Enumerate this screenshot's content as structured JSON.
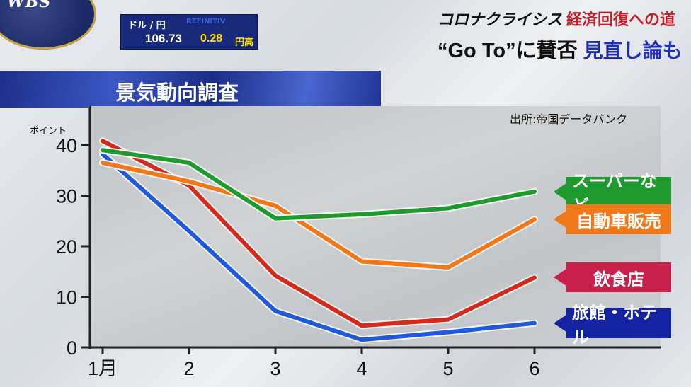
{
  "logo": {
    "text": "WBS"
  },
  "fx": {
    "label": "ドル / 円",
    "ticker": "REFINITIV",
    "rate": "106.73",
    "change": "0.28",
    "direction": "円高"
  },
  "series_title": {
    "part1": "コロナクライシス",
    "part2": "経済回復への道"
  },
  "headline": {
    "part1": "“Go To”に賛否",
    "part2": "見直し論も"
  },
  "chart_data": {
    "type": "line",
    "title": "景気動向調査",
    "source": "出所:帝国データバンク",
    "ylabel": "ポイント",
    "xlabel": "",
    "x": [
      "1月",
      "2",
      "3",
      "4",
      "5",
      "6"
    ],
    "ylim": [
      0,
      45
    ],
    "yticks": [
      0,
      10,
      20,
      30,
      40
    ],
    "grid": false,
    "legend": "right",
    "series": [
      {
        "name": "スーパーなど",
        "color": "#1e9a2e",
        "values": [
          39.0,
          36.5,
          25.5,
          26.3,
          27.5,
          30.8
        ]
      },
      {
        "name": "自動車販売",
        "color": "#f07818",
        "values": [
          36.5,
          32.8,
          28.0,
          17.0,
          15.8,
          25.3
        ]
      },
      {
        "name": "飲食店",
        "color": "#d42a1c",
        "values": [
          40.8,
          32.0,
          14.2,
          4.3,
          5.5,
          13.8
        ]
      },
      {
        "name": "旅館・ホテル",
        "color": "#1f5adc",
        "values": [
          38.2,
          23.0,
          7.2,
          1.5,
          3.0,
          4.8
        ]
      }
    ],
    "legend_colors": [
      "#1e9a2e",
      "#f07818",
      "#c8204a",
      "#1424a0"
    ]
  }
}
